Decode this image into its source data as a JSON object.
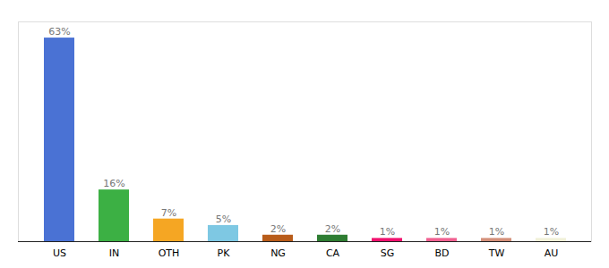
{
  "chart_data": {
    "type": "bar",
    "categories": [
      "US",
      "IN",
      "OTH",
      "PK",
      "NG",
      "CA",
      "SG",
      "BD",
      "TW",
      "AU"
    ],
    "values": [
      63,
      16,
      7,
      5,
      2,
      2,
      1,
      1,
      1,
      1
    ],
    "value_labels": [
      "63%",
      "16%",
      "7%",
      "5%",
      "2%",
      "2%",
      "1%",
      "1%",
      "1%",
      "1%"
    ],
    "colors": [
      "#4a72d4",
      "#3cb044",
      "#f5a623",
      "#7ec8e3",
      "#b85c1a",
      "#2e7d32",
      "#f0116e",
      "#f06090",
      "#d4907a",
      "#f0f0d8"
    ],
    "ylim": [
      0,
      68
    ],
    "grid": false,
    "data_labels": true,
    "tick_labels": "x"
  }
}
